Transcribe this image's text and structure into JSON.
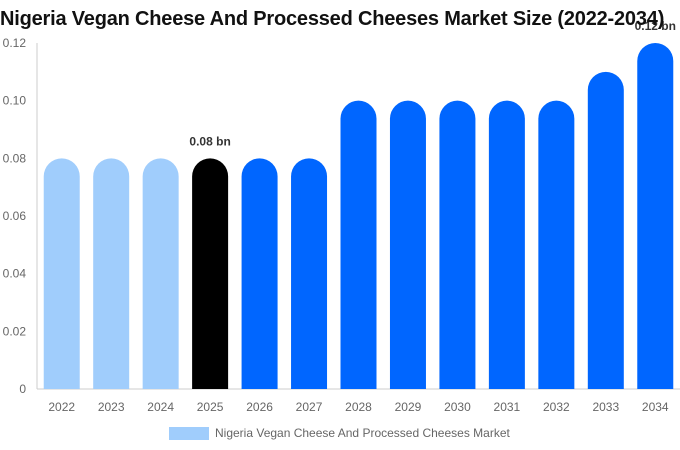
{
  "title": "Nigeria Vegan Cheese And Processed Cheeses Market Size (2022-2034)",
  "legend": {
    "label": "Nigeria Vegan Cheese And Processed Cheeses Market",
    "color": "#a0cdfc"
  },
  "colors": {
    "historical": "#a0cdfc",
    "base": "#000000",
    "forecast": "#0066ff",
    "axis": "#cccccc",
    "text": "#666666"
  },
  "chart_data": {
    "type": "bar",
    "title": "Nigeria Vegan Cheese And Processed Cheeses Market Size (2022-2034)",
    "xlabel": "",
    "ylabel": "",
    "ylim": [
      0,
      0.12
    ],
    "yticks": [
      {
        "value": 0,
        "label": "0"
      },
      {
        "value": 0.02,
        "label": "0.02"
      },
      {
        "value": 0.04,
        "label": "0.04"
      },
      {
        "value": 0.06,
        "label": "0.06"
      },
      {
        "value": 0.08,
        "label": "0.08"
      },
      {
        "value": 0.1,
        "label": "0.10"
      },
      {
        "value": 0.12,
        "label": "0.12"
      }
    ],
    "categories": [
      "2022",
      "2023",
      "2024",
      "2025",
      "2026",
      "2027",
      "2028",
      "2029",
      "2030",
      "2031",
      "2032",
      "2033",
      "2034"
    ],
    "values": [
      0.08,
      0.08,
      0.08,
      0.08,
      0.08,
      0.08,
      0.1,
      0.1,
      0.1,
      0.1,
      0.1,
      0.11,
      0.12
    ],
    "bar_kind": [
      "historical",
      "historical",
      "historical",
      "base",
      "forecast",
      "forecast",
      "forecast",
      "forecast",
      "forecast",
      "forecast",
      "forecast",
      "forecast",
      "forecast"
    ],
    "annotations": [
      {
        "category": "2025",
        "text": "0.08 bn"
      },
      {
        "category": "2034",
        "text": "0.12 bn"
      }
    ],
    "series": [
      {
        "name": "Nigeria Vegan Cheese And Processed Cheeses Market",
        "values": [
          0.08,
          0.08,
          0.08,
          0.08,
          0.08,
          0.08,
          0.1,
          0.1,
          0.1,
          0.1,
          0.1,
          0.11,
          0.12
        ]
      }
    ]
  }
}
